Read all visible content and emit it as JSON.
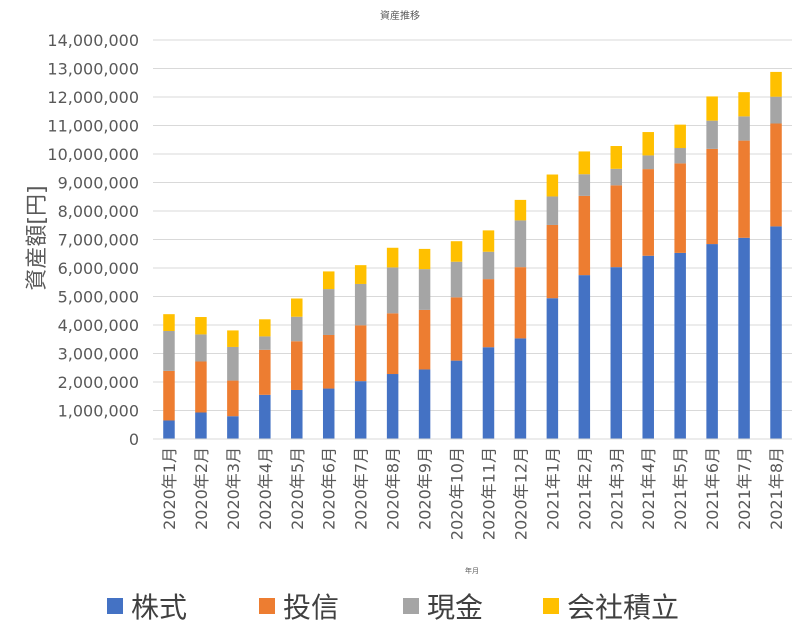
{
  "chart_data": {
    "type": "bar",
    "stacked": true,
    "title": "資産推移",
    "xlabel": "年月",
    "ylabel": "資産額[円]",
    "ylim": [
      0,
      14000000
    ],
    "yticks": [
      0,
      1000000,
      2000000,
      3000000,
      4000000,
      5000000,
      6000000,
      7000000,
      8000000,
      9000000,
      10000000,
      11000000,
      12000000,
      13000000,
      14000000
    ],
    "ytick_labels": [
      "0",
      "1,000,000",
      "2,000,000",
      "3,000,000",
      "4,000,000",
      "5,000,000",
      "6,000,000",
      "7,000,000",
      "8,000,000",
      "9,000,000",
      "10,000,000",
      "11,000,000",
      "12,000,000",
      "13,000,000",
      "14,000,000"
    ],
    "grid": true,
    "legend_position": "bottom",
    "categories": [
      "2020年1月",
      "2020年2月",
      "2020年3月",
      "2020年4月",
      "2020年5月",
      "2020年6月",
      "2020年7月",
      "2020年8月",
      "2020年9月",
      "2020年10月",
      "2020年11月",
      "2020年12月",
      "2021年1月",
      "2021年2月",
      "2021年3月",
      "2021年4月",
      "2021年5月",
      "2021年6月",
      "2021年7月",
      "2021年8月"
    ],
    "series": [
      {
        "name": "株式",
        "color": "#4472C4",
        "values": [
          650000,
          930000,
          800000,
          1550000,
          1720000,
          1770000,
          2030000,
          2280000,
          2440000,
          2750000,
          3220000,
          3530000,
          4940000,
          5750000,
          6030000,
          6430000,
          6530000,
          6840000,
          7060000,
          7460000
        ]
      },
      {
        "name": "投信",
        "color": "#ED7D31",
        "values": [
          1740000,
          1790000,
          1250000,
          1580000,
          1710000,
          1880000,
          1960000,
          2130000,
          2090000,
          2220000,
          2390000,
          2500000,
          2570000,
          2780000,
          2870000,
          3040000,
          3140000,
          3340000,
          3410000,
          3610000
        ]
      },
      {
        "name": "現金",
        "color": "#A5A5A5",
        "values": [
          1400000,
          950000,
          1180000,
          470000,
          860000,
          1610000,
          1450000,
          1610000,
          1430000,
          1250000,
          960000,
          1640000,
          1000000,
          760000,
          580000,
          480000,
          540000,
          990000,
          850000,
          940000
        ]
      },
      {
        "name": "会社積立",
        "color": "#FFC000",
        "values": [
          590000,
          610000,
          580000,
          600000,
          640000,
          620000,
          660000,
          690000,
          710000,
          720000,
          750000,
          720000,
          770000,
          800000,
          800000,
          820000,
          820000,
          850000,
          850000,
          870000
        ]
      }
    ]
  }
}
